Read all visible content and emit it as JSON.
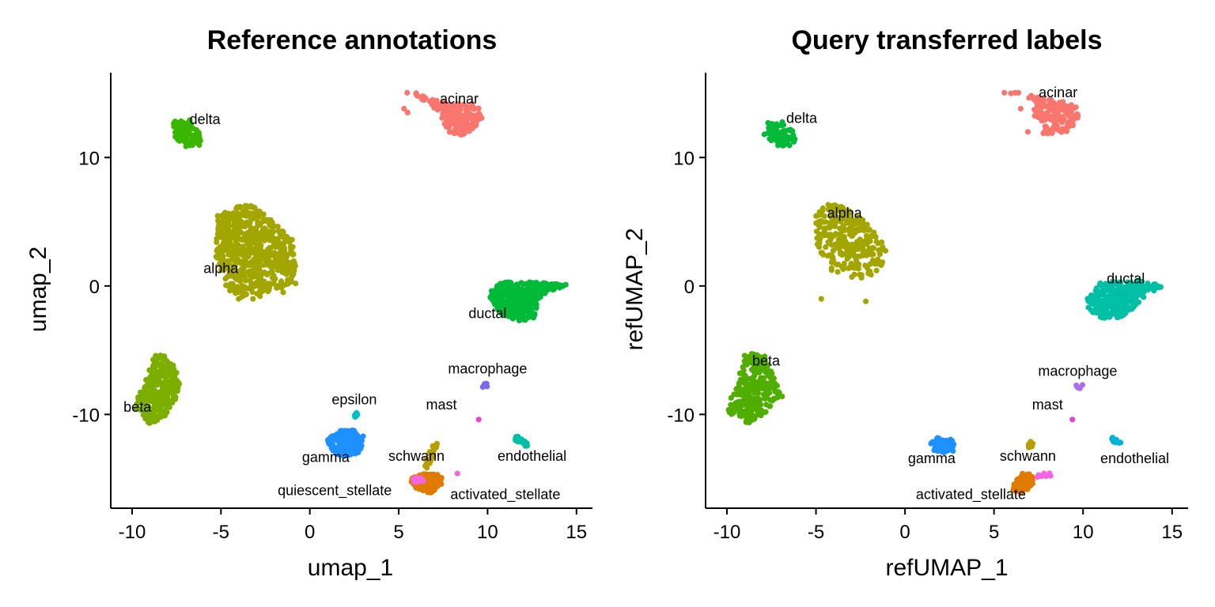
{
  "chart_data": [
    {
      "type": "scatter",
      "title": "Reference annotations",
      "xlabel": "umap_1",
      "ylabel": "umap_2",
      "xlim": [
        -11.2,
        15.9
      ],
      "ylim": [
        -17.3,
        16.6
      ],
      "xticks": [
        -10,
        -5,
        0,
        5,
        10,
        15
      ],
      "yticks": [
        -10,
        0,
        10
      ],
      "grid": false,
      "legend": "none",
      "clusters": [
        {
          "name": "acinar",
          "color": "#F8766D",
          "label_xy": [
            8.4,
            14.2
          ],
          "points": 180,
          "shape": [
            [
              5.0,
              15.0
            ],
            [
              6.0,
              14.7
            ],
            [
              6.8,
              14.2
            ],
            [
              7.2,
              13.5
            ],
            [
              7.5,
              12.8
            ],
            [
              7.8,
              12.0
            ],
            [
              8.5,
              11.7
            ],
            [
              9.3,
              12.3
            ],
            [
              9.7,
              13.0
            ],
            [
              9.6,
              13.8
            ],
            [
              9.0,
              14.3
            ],
            [
              8.0,
              14.2
            ],
            [
              7.0,
              14.6
            ],
            [
              6.0,
              15.1
            ]
          ],
          "strays": [
            [
              5.3,
              13.8
            ],
            [
              5.5,
              13.5
            ]
          ]
        },
        {
          "name": "delta",
          "color": "#39B600",
          "label_xy": [
            -5.9,
            12.6
          ],
          "points": 90,
          "shape": [
            [
              -7.7,
              12.8
            ],
            [
              -6.8,
              13.0
            ],
            [
              -6.3,
              12.3
            ],
            [
              -6.1,
              11.0
            ],
            [
              -6.9,
              10.8
            ],
            [
              -7.6,
              11.5
            ]
          ],
          "strays": []
        },
        {
          "name": "alpha",
          "color": "#A3A500",
          "label_xy": [
            -5.0,
            1.0
          ],
          "points": 620,
          "shape": [
            [
              -5.2,
              5.5
            ],
            [
              -3.5,
              6.5
            ],
            [
              -2.2,
              5.2
            ],
            [
              -1.0,
              3.5
            ],
            [
              -0.8,
              1.5
            ],
            [
              -1.0,
              0.0
            ],
            [
              -2.5,
              -0.5
            ],
            [
              -4.0,
              -1.0
            ],
            [
              -4.8,
              0.0
            ],
            [
              -5.3,
              2.0
            ]
          ],
          "strays": [
            [
              -4.0,
              -1.0
            ],
            [
              -3.2,
              -1.0
            ],
            [
              -2.8,
              -0.8
            ],
            [
              -1.5,
              -0.5
            ],
            [
              -0.8,
              0.2
            ],
            [
              -1.0,
              3.6
            ]
          ]
        },
        {
          "name": "ductal",
          "color": "#00BA38",
          "label_xy": [
            10.0,
            -2.5
          ],
          "points": 320,
          "shape": [
            [
              10.0,
              -0.5
            ],
            [
              10.8,
              0.3
            ],
            [
              12.5,
              0.3
            ],
            [
              14.5,
              0.1
            ],
            [
              13.0,
              -0.8
            ],
            [
              12.6,
              -2.5
            ],
            [
              11.8,
              -2.8
            ],
            [
              10.5,
              -2.0
            ]
          ],
          "strays": []
        },
        {
          "name": "beta",
          "color": "#7CAE00",
          "label_xy": [
            -9.7,
            -9.8
          ],
          "points": 280,
          "shape": [
            [
              -9.7,
              -8.8
            ],
            [
              -9.3,
              -7.5
            ],
            [
              -8.7,
              -5.2
            ],
            [
              -7.8,
              -5.6
            ],
            [
              -7.3,
              -7.5
            ],
            [
              -7.6,
              -9.0
            ],
            [
              -8.2,
              -10.2
            ],
            [
              -9.0,
              -10.8
            ],
            [
              -9.8,
              -9.7
            ]
          ],
          "strays": [
            [
              -8.6,
              -8.5
            ],
            [
              -8.3,
              -8.6
            ]
          ]
        },
        {
          "name": "epsilon",
          "color": "#00BFC4",
          "label_xy": [
            2.5,
            -9.2
          ],
          "points": 8,
          "shape": [
            [
              2.5,
              -9.8
            ],
            [
              2.7,
              -9.8
            ],
            [
              2.7,
              -10.2
            ],
            [
              2.5,
              -10.2
            ]
          ],
          "strays": []
        },
        {
          "name": "gamma",
          "color": "#1E90FF",
          "label_xy": [
            0.9,
            -13.7
          ],
          "points": 200,
          "shape": [
            [
              1.0,
              -12.0
            ],
            [
              1.5,
              -11.3
            ],
            [
              2.5,
              -11.2
            ],
            [
              3.0,
              -12.0
            ],
            [
              2.8,
              -13.0
            ],
            [
              1.8,
              -13.3
            ],
            [
              1.1,
              -12.7
            ]
          ],
          "strays": [
            [
              3.0,
              -11.7
            ]
          ]
        },
        {
          "name": "macrophage",
          "color": "#7B68EE",
          "label_xy": [
            10.0,
            -6.8
          ],
          "points": 6,
          "shape": [
            [
              9.7,
              -7.6
            ],
            [
              10.0,
              -7.6
            ],
            [
              10.0,
              -7.9
            ],
            [
              9.7,
              -7.9
            ]
          ],
          "strays": []
        },
        {
          "name": "mast",
          "color": "#E442D1",
          "label_xy": [
            7.4,
            -9.6
          ],
          "points": 1,
          "shape": [
            [
              9.5,
              -10.4
            ],
            [
              9.5,
              -10.4
            ],
            [
              9.5,
              -10.4
            ]
          ],
          "strays": []
        },
        {
          "name": "endothelial",
          "color": "#00BFA5",
          "label_xy": [
            12.5,
            -13.6
          ],
          "points": 30,
          "shape": [
            [
              11.4,
              -11.8
            ],
            [
              11.7,
              -11.7
            ],
            [
              12.3,
              -12.3
            ],
            [
              12.2,
              -12.5
            ],
            [
              11.5,
              -12.0
            ]
          ],
          "strays": []
        },
        {
          "name": "schwann",
          "color": "#B79F00",
          "label_xy": [
            6.0,
            -13.6
          ],
          "points": 25,
          "shape": [
            [
              6.8,
              -12.0
            ],
            [
              7.2,
              -12.2
            ],
            [
              6.9,
              -13.5
            ],
            [
              6.6,
              -14.2
            ],
            [
              6.3,
              -14.0
            ],
            [
              6.7,
              -13.0
            ]
          ],
          "strays": []
        },
        {
          "name": "activated_stellate",
          "color": "#DE7B00",
          "label_xy": [
            11.0,
            -16.6
          ],
          "points": 120,
          "shape": [
            [
              5.6,
              -15.0
            ],
            [
              6.5,
              -14.6
            ],
            [
              7.5,
              -14.7
            ],
            [
              7.4,
              -15.5
            ],
            [
              6.8,
              -16.1
            ],
            [
              6.0,
              -15.9
            ]
          ],
          "strays": []
        },
        {
          "name": "quiescent_stellate",
          "color": "#F564E3",
          "label_xy": [
            1.4,
            -16.3
          ],
          "points": 20,
          "shape": [
            [
              5.7,
              -15.0
            ],
            [
              6.3,
              -14.8
            ],
            [
              6.4,
              -15.2
            ],
            [
              5.8,
              -15.4
            ]
          ],
          "strays": [
            [
              8.3,
              -14.6
            ]
          ]
        }
      ]
    },
    {
      "type": "scatter",
      "title": "Query transferred labels",
      "xlabel": "refUMAP_1",
      "ylabel": "refUMAP_2",
      "xlim": [
        -11.2,
        15.9
      ],
      "ylim": [
        -17.3,
        16.6
      ],
      "xticks": [
        -10,
        -5,
        0,
        5,
        10,
        15
      ],
      "yticks": [
        -10,
        0,
        10
      ],
      "grid": false,
      "legend": "none",
      "clusters": [
        {
          "name": "acinar",
          "color": "#F8766D",
          "label_xy": [
            8.6,
            14.7
          ],
          "points": 140,
          "shape": [
            [
              5.2,
              15.0
            ],
            [
              6.5,
              14.8
            ],
            [
              7.2,
              14.3
            ],
            [
              7.3,
              13.0
            ],
            [
              7.8,
              11.8
            ],
            [
              9.0,
              11.9
            ],
            [
              9.8,
              13.0
            ],
            [
              9.6,
              14.0
            ],
            [
              8.6,
              14.5
            ],
            [
              7.5,
              14.7
            ],
            [
              6.0,
              15.2
            ]
          ],
          "strays": [
            [
              6.5,
              13.8
            ],
            [
              6.9,
              12.0
            ]
          ]
        },
        {
          "name": "delta",
          "color": "#00BA38",
          "label_xy": [
            -5.8,
            12.7
          ],
          "points": 60,
          "shape": [
            [
              -7.7,
              12.8
            ],
            [
              -6.9,
              13.0
            ],
            [
              -6.3,
              12.1
            ],
            [
              -6.1,
              11.0
            ],
            [
              -7.1,
              10.8
            ],
            [
              -7.7,
              11.5
            ]
          ],
          "strays": [
            [
              -7.9,
              11.8
            ]
          ]
        },
        {
          "name": "alpha",
          "color": "#A3A500",
          "label_xy": [
            -3.4,
            5.3
          ],
          "points": 280,
          "shape": [
            [
              -5.0,
              5.5
            ],
            [
              -4.5,
              6.5
            ],
            [
              -3.0,
              6.0
            ],
            [
              -1.5,
              4.0
            ],
            [
              -1.0,
              2.5
            ],
            [
              -1.5,
              1.0
            ],
            [
              -2.5,
              0.5
            ],
            [
              -4.0,
              1.0
            ],
            [
              -4.8,
              2.5
            ],
            [
              -5.0,
              3.5
            ]
          ],
          "strays": [
            [
              -4.7,
              -1.0
            ],
            [
              -2.2,
              -1.2
            ]
          ]
        },
        {
          "name": "ductal",
          "color": "#00BFA5",
          "label_xy": [
            12.4,
            0.2
          ],
          "points": 260,
          "shape": [
            [
              10.2,
              -1.0
            ],
            [
              11.0,
              0.3
            ],
            [
              13.0,
              0.5
            ],
            [
              14.5,
              0.0
            ],
            [
              13.5,
              -0.8
            ],
            [
              12.3,
              -2.5
            ],
            [
              11.0,
              -2.5
            ],
            [
              10.3,
              -1.8
            ]
          ],
          "strays": [
            [
              11.3,
              -1.3
            ],
            [
              11.5,
              -1.2
            ],
            [
              12.1,
              -0.7
            ],
            [
              10.8,
              -1.0
            ]
          ]
        },
        {
          "name": "beta",
          "color": "#4FAE00",
          "label_xy": [
            -7.8,
            -6.2
          ],
          "points": 240,
          "shape": [
            [
              -10.0,
              -9.5
            ],
            [
              -9.4,
              -7.5
            ],
            [
              -9.0,
              -5.2
            ],
            [
              -7.9,
              -5.4
            ],
            [
              -7.4,
              -7.0
            ],
            [
              -6.9,
              -8.5
            ],
            [
              -7.8,
              -9.8
            ],
            [
              -8.8,
              -10.9
            ],
            [
              -9.8,
              -10.0
            ]
          ],
          "strays": [
            [
              -6.9,
              -8.6
            ]
          ]
        },
        {
          "name": "gamma",
          "color": "#1E90FF",
          "label_xy": [
            1.5,
            -13.8
          ],
          "points": 60,
          "shape": [
            [
              1.4,
              -12.2
            ],
            [
              1.8,
              -11.8
            ],
            [
              2.6,
              -11.9
            ],
            [
              2.9,
              -12.8
            ],
            [
              2.2,
              -13.0
            ],
            [
              1.6,
              -12.8
            ]
          ],
          "strays": []
        },
        {
          "name": "macrophage",
          "color": "#B06CF0",
          "label_xy": [
            9.7,
            -7.0
          ],
          "points": 6,
          "shape": [
            [
              9.6,
              -7.7
            ],
            [
              10.0,
              -7.6
            ],
            [
              10.0,
              -8.0
            ],
            [
              9.6,
              -8.0
            ]
          ],
          "strays": []
        },
        {
          "name": "mast",
          "color": "#E442D1",
          "label_xy": [
            8.0,
            -9.6
          ],
          "points": 1,
          "shape": [
            [
              9.4,
              -10.4
            ],
            [
              9.4,
              -10.4
            ],
            [
              9.4,
              -10.4
            ]
          ],
          "strays": []
        },
        {
          "name": "endothelial",
          "color": "#00B4D8",
          "label_xy": [
            12.9,
            -13.8
          ],
          "points": 18,
          "shape": [
            [
              11.6,
              -11.8
            ],
            [
              11.9,
              -11.8
            ],
            [
              12.2,
              -12.3
            ],
            [
              11.9,
              -12.4
            ],
            [
              11.6,
              -12.1
            ]
          ],
          "strays": []
        },
        {
          "name": "schwann",
          "color": "#B79F00",
          "label_xy": [
            6.9,
            -13.6
          ],
          "points": 12,
          "shape": [
            [
              6.9,
              -12.0
            ],
            [
              7.2,
              -12.1
            ],
            [
              7.2,
              -12.8
            ],
            [
              6.9,
              -12.7
            ]
          ],
          "strays": []
        },
        {
          "name": "activated_stellate",
          "color": "#DE7B00",
          "label_xy": [
            3.7,
            -16.6
          ],
          "points": 60,
          "shape": [
            [
              6.0,
              -15.5
            ],
            [
              6.6,
              -14.6
            ],
            [
              7.3,
              -14.7
            ],
            [
              7.2,
              -15.6
            ],
            [
              6.6,
              -16.1
            ],
            [
              6.1,
              -16.0
            ]
          ],
          "strays": []
        },
        {
          "name": "quiescent_stellate",
          "color": "#F564E3",
          "label_xy": null,
          "points": 8,
          "shape": [
            [
              7.4,
              -14.6
            ],
            [
              8.2,
              -14.5
            ],
            [
              8.2,
              -14.9
            ],
            [
              7.4,
              -14.9
            ]
          ],
          "strays": []
        }
      ]
    }
  ]
}
